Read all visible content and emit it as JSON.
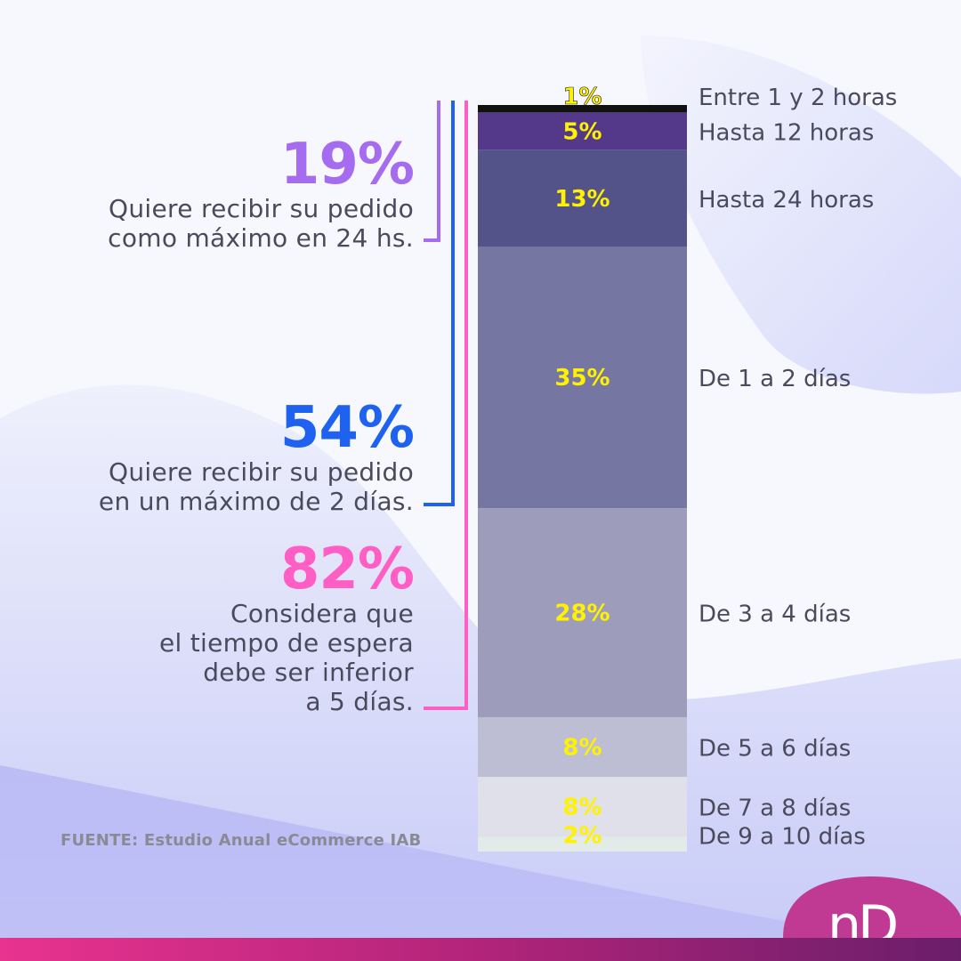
{
  "chart_data": {
    "type": "bar",
    "stacked": true,
    "orientation": "vertical-100%",
    "categories": [
      "Entre 1 y 2 horas",
      "Hasta 12 horas",
      "Hasta 24 horas",
      "De 1 a 2 días",
      "De 3 a 4 días",
      "De 5 a 6 días",
      "De 7 a 8 días",
      "De 9 a 10 días"
    ],
    "values": [
      1,
      5,
      13,
      35,
      28,
      8,
      8,
      2
    ],
    "value_labels": [
      "1%",
      "5%",
      "13%",
      "35%",
      "28%",
      "8%",
      "8%",
      "2%"
    ],
    "colors": [
      "#111111",
      "#54398a",
      "#53538a",
      "#7676a2",
      "#9d9cba",
      "#bdbed4",
      "#dfe0ea",
      "#e3ebe8"
    ],
    "label_color": "#fff200"
  },
  "callouts": [
    {
      "pct": "19%",
      "desc": [
        "Quiere recibir su pedido",
        "como máximo en 24 hs."
      ],
      "color": "#a66cf0"
    },
    {
      "pct": "54%",
      "desc": [
        "Quiere recibir su pedido",
        "en un máximo de 2 días."
      ],
      "color": "#1f62f0"
    },
    {
      "pct": "82%",
      "desc": [
        "Considera que",
        "el tiempo de espera",
        "debe ser inferior",
        "a 5 días."
      ],
      "color": "#ff5ec4"
    }
  ],
  "source": "FUENTE: Estudio Anual eCommerce IAB",
  "logo": "nD"
}
